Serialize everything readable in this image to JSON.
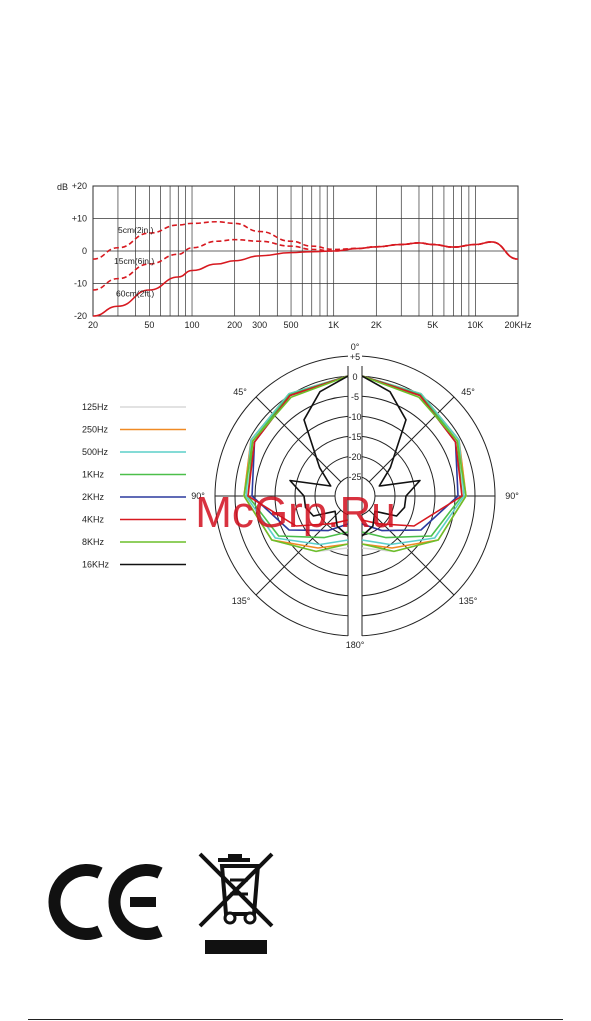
{
  "chart_data": [
    {
      "type": "line",
      "title": "",
      "xlabel": "",
      "ylabel": "dB",
      "x_scale": "log",
      "xlim": [
        20,
        20000
      ],
      "ylim": [
        -20,
        20
      ],
      "grid": true,
      "y_ticks": [
        "+20",
        "+10",
        "0",
        "-10",
        "-20"
      ],
      "y_tick_values": [
        20,
        10,
        0,
        -10,
        -20
      ],
      "x_ticks": [
        "20",
        "50",
        "100",
        "200",
        "300",
        "500",
        "1K",
        "2K",
        "5K",
        "10K",
        "20KHz"
      ],
      "x_tick_values": [
        20,
        50,
        100,
        200,
        300,
        500,
        1000,
        2000,
        5000,
        10000,
        20000
      ],
      "series": [
        {
          "name": "5cm(2in.)",
          "style": "dashed",
          "color": "#d71920",
          "x": [
            20,
            30,
            50,
            80,
            100,
            150,
            200,
            300,
            500,
            700,
            1000,
            1500,
            2000,
            3000,
            4000,
            5000,
            7000,
            10000,
            13000,
            20000
          ],
          "y": [
            -2.5,
            1,
            5.5,
            8,
            8.5,
            9,
            8.5,
            6,
            3,
            1.5,
            0.5,
            0.8,
            1.3,
            2,
            2.5,
            2,
            1.2,
            2,
            2.8,
            -2.5
          ]
        },
        {
          "name": "15cm(6in.)",
          "style": "dashed",
          "color": "#d71920",
          "x": [
            20,
            30,
            50,
            80,
            100,
            150,
            200,
            300,
            500,
            700,
            1000,
            1500,
            2000,
            3000,
            4000,
            5000,
            7000,
            10000,
            13000,
            20000
          ],
          "y": [
            -12,
            -8.5,
            -4,
            -1,
            1,
            3,
            3.5,
            3,
            1.5,
            0.5,
            0,
            0.8,
            1.3,
            2,
            2.5,
            2,
            1.2,
            2,
            2.8,
            -2.5
          ]
        },
        {
          "name": "60cm(2ft.)",
          "style": "solid",
          "color": "#d71920",
          "x": [
            20,
            30,
            50,
            80,
            100,
            150,
            200,
            300,
            500,
            700,
            1000,
            1500,
            2000,
            3000,
            4000,
            5000,
            7000,
            10000,
            13000,
            20000
          ],
          "y": [
            -21,
            -17,
            -12,
            -8,
            -6,
            -4,
            -3,
            -1.5,
            -0.5,
            -0.2,
            0,
            0.8,
            1.3,
            2,
            2.5,
            2,
            1.2,
            2,
            2.8,
            -2.5
          ]
        }
      ],
      "annotations": [
        "5cm(2in.)",
        "15cm(6in.)",
        "60cm(2ft.)"
      ]
    },
    {
      "type": "polar",
      "r_ticks": [
        "+5",
        "0",
        "-5",
        "-10",
        "-15",
        "-20",
        "-25"
      ],
      "r_tick_values": [
        5,
        0,
        -5,
        -10,
        -15,
        -20,
        -25
      ],
      "rlim": [
        -30,
        5
      ],
      "angle_labels": [
        "0°",
        "45°",
        "45°",
        "90°",
        "90°",
        "135°",
        "135°",
        "180°"
      ],
      "series": [
        {
          "name": "125Hz",
          "color": "#d8d8d8",
          "angles": [
            0,
            30,
            60,
            90,
            120,
            150,
            180
          ],
          "values": [
            0,
            -0.5,
            -2,
            -4,
            -8,
            -14,
            -17
          ]
        },
        {
          "name": "250Hz",
          "color": "#f08a24",
          "angles": [
            0,
            30,
            60,
            90,
            120,
            150,
            180
          ],
          "values": [
            0,
            -0.5,
            -2,
            -4,
            -8,
            -15,
            -18
          ]
        },
        {
          "name": "500Hz",
          "color": "#5ccfc9",
          "angles": [
            0,
            30,
            60,
            90,
            120,
            150,
            180
          ],
          "values": [
            0,
            -0.5,
            -2,
            -4.5,
            -9,
            -16,
            -19
          ]
        },
        {
          "name": "1KHz",
          "color": "#4cbf4a",
          "angles": [
            0,
            30,
            60,
            90,
            120,
            150,
            180
          ],
          "values": [
            0,
            -0.8,
            -2.5,
            -5,
            -10,
            -18,
            -21
          ]
        },
        {
          "name": "2KHz",
          "color": "#2b3a9e",
          "angles": [
            0,
            30,
            60,
            90,
            120,
            150,
            180
          ],
          "values": [
            0,
            -1,
            -3,
            -6,
            -13,
            -20,
            -23
          ]
        },
        {
          "name": "4KHz",
          "color": "#d71920",
          "angles": [
            0,
            30,
            60,
            90,
            120,
            150,
            180
          ],
          "values": [
            0,
            -1,
            -3,
            -5,
            -15,
            -22,
            -24
          ]
        },
        {
          "name": "8KHz",
          "color": "#6cbf2a",
          "angles": [
            0,
            30,
            60,
            90,
            120,
            150,
            180
          ],
          "values": [
            0,
            -1.5,
            -2.5,
            -4,
            -8,
            -14,
            -18
          ]
        },
        {
          "name": "16KHz",
          "color": "#111111",
          "angles": [
            0,
            15,
            30,
            45,
            60,
            75,
            90,
            105,
            120,
            140,
            160,
            180
          ],
          "values": [
            0,
            -3,
            -8,
            -20,
            -25,
            -15,
            -19,
            -19,
            -20,
            -25,
            -22,
            -20
          ]
        }
      ]
    }
  ],
  "watermark": "McGrp.Ru",
  "symbols": {
    "ce_mark": "CE",
    "weee_icon": "crossed-out-wheelie-bin-icon"
  }
}
